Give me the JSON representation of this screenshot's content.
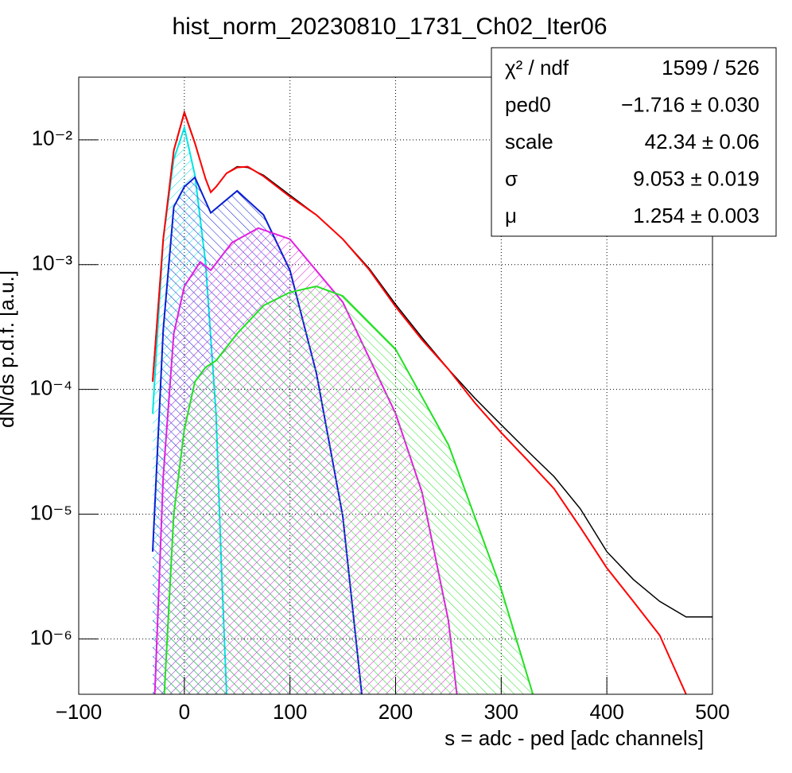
{
  "chart_data": {
    "type": "line",
    "title": "hist_norm_20230810_1731_Ch02_Iter06",
    "x_label": "s = adc - ped [adc channels]",
    "y_label": "dN/ds p.d.f. [a.u.]",
    "logy": true,
    "grid": true,
    "xlim": [
      -100,
      500
    ],
    "ylim": [
      3.6e-07,
      0.0318
    ],
    "xticks": [
      {
        "value": -100,
        "label": "−100"
      },
      0,
      100,
      200,
      300,
      400,
      500
    ],
    "yticks": [
      {
        "value": 1e-06,
        "label": "10⁻⁶"
      },
      {
        "value": 1e-05,
        "label": "10⁻⁵"
      },
      {
        "value": 0.0001,
        "label": "10⁻⁴"
      },
      {
        "value": 0.001,
        "label": "10⁻³"
      },
      {
        "value": 0.01,
        "label": "10⁻²"
      }
    ],
    "series": [
      {
        "color": "#000000",
        "hatch": false,
        "x": [
          -30,
          -20,
          -10,
          0,
          10,
          20,
          25,
          30,
          40,
          50,
          60,
          75,
          100,
          125,
          150,
          175,
          200,
          225,
          250,
          275,
          300,
          325,
          350,
          375,
          400,
          425,
          450,
          475,
          500
        ],
        "values": [
          0.00012,
          0.0016,
          0.0083,
          0.0168,
          0.0095,
          0.0049,
          0.0038,
          0.0042,
          0.0054,
          0.0061,
          0.006,
          0.0052,
          0.0036,
          0.0025,
          0.0016,
          0.00093,
          0.00048,
          0.00026,
          0.000145,
          8.5e-05,
          5.2e-05,
          3.2e-05,
          2e-05,
          1.1e-05,
          5e-06,
          3e-06,
          2e-06,
          1.5e-06,
          1.5e-06
        ]
      },
      {
        "color": "#00e5e5",
        "hatch": true,
        "x": [
          -30,
          -20,
          -10,
          0,
          10,
          20,
          30,
          35,
          40
        ],
        "values": [
          6.4e-05,
          0.0016,
          0.007,
          0.0125,
          0.0052,
          0.00105,
          6.4e-05,
          4e-06,
          3.6e-07
        ]
      },
      {
        "color": "#0a1ed2",
        "hatch": true,
        "x": [
          -30,
          -20,
          -10,
          0,
          10,
          25,
          50,
          75,
          100,
          125,
          150,
          168
        ],
        "values": [
          5e-06,
          0.0003,
          0.0029,
          0.0042,
          0.005,
          0.0026,
          0.0039,
          0.0025,
          0.0009,
          0.000135,
          9.6e-06,
          3.6e-07
        ]
      },
      {
        "color": "#e020e0",
        "hatch": true,
        "x": [
          -28,
          -20,
          -10,
          0,
          15,
          25,
          45,
          70,
          100,
          150,
          200,
          225,
          250,
          258
        ],
        "values": [
          3.6e-07,
          2e-05,
          0.00028,
          0.00067,
          0.00105,
          0.0009,
          0.0015,
          0.00196,
          0.0016,
          0.0005,
          6.4e-05,
          1.5e-05,
          1.4e-06,
          3.6e-07
        ]
      },
      {
        "color": "#22e022",
        "hatch": true,
        "x": [
          -19,
          -10,
          0,
          10,
          20,
          30,
          50,
          75,
          100,
          125,
          150,
          200,
          250,
          300,
          330
        ],
        "values": [
          3.6e-07,
          1e-05,
          4.8e-05,
          0.000115,
          0.00015,
          0.00017,
          0.00028,
          0.00047,
          0.0006,
          0.00067,
          0.00056,
          0.00021,
          3.6e-05,
          2.5e-06,
          3.6e-07
        ]
      },
      {
        "color": "#ff0000",
        "hatch": false,
        "x": [
          -30,
          -20,
          -10,
          0,
          10,
          20,
          25,
          30,
          40,
          50,
          60,
          75,
          100,
          125,
          150,
          175,
          200,
          225,
          250,
          275,
          300,
          325,
          350,
          375,
          400,
          425,
          450,
          475
        ],
        "values": [
          0.000115,
          0.0016,
          0.0082,
          0.0165,
          0.0094,
          0.0049,
          0.0038,
          0.0042,
          0.0054,
          0.006,
          0.0061,
          0.0051,
          0.0035,
          0.0025,
          0.0016,
          0.00091,
          0.00046,
          0.00025,
          0.000145,
          7.8e-05,
          4.5e-05,
          2.7e-05,
          1.6e-05,
          7.8e-06,
          3.7e-06,
          2e-06,
          1.07e-06,
          3.6e-07
        ]
      }
    ],
    "stats": [
      [
        "χ² / ndf",
        "1599 / 526"
      ],
      [
        "ped0",
        "−1.716 ± 0.030"
      ],
      [
        "scale",
        "42.34 ± 0.06"
      ],
      [
        "σ",
        "9.053 ± 0.019"
      ],
      [
        "μ",
        "1.254 ± 0.003"
      ]
    ]
  }
}
